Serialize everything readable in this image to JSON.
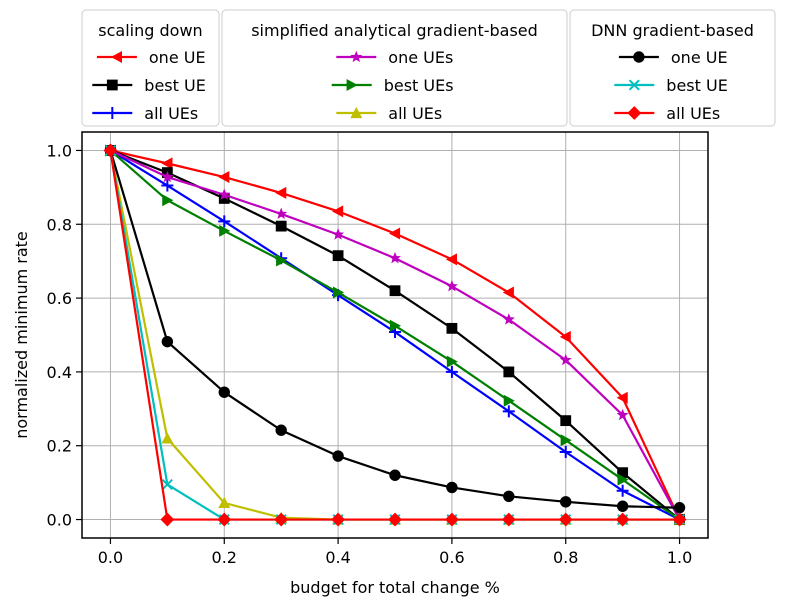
{
  "chart_data": {
    "type": "line",
    "title": "",
    "xlabel": "budget for total change %",
    "ylabel": "normalized minimum rate",
    "xlim": [
      -0.05,
      1.05
    ],
    "ylim": [
      -0.05,
      1.05
    ],
    "grid": true,
    "x": [
      0.0,
      0.1,
      0.2,
      0.3,
      0.4,
      0.5,
      0.6,
      0.7,
      0.8,
      0.9,
      1.0
    ],
    "xticks": [
      0.0,
      0.2,
      0.4,
      0.6,
      0.8,
      1.0
    ],
    "xtick_labels": [
      "0.0",
      "0.2",
      "0.4",
      "0.6",
      "0.8",
      "1.0"
    ],
    "yticks": [
      0.0,
      0.2,
      0.4,
      0.6,
      0.8,
      1.0
    ],
    "ytick_labels": [
      "0.0",
      "0.2",
      "0.4",
      "0.6",
      "0.8",
      "1.0"
    ],
    "legend_groups": [
      {
        "title": "scaling down",
        "entries": [
          0,
          1,
          2
        ]
      },
      {
        "title": "simplified analytical gradient-based",
        "entries": [
          3,
          4,
          5
        ]
      },
      {
        "title": "DNN gradient-based",
        "entries": [
          6,
          7,
          8
        ]
      }
    ],
    "series": [
      {
        "name": "one UE",
        "group": "scaling down",
        "color": "#ff0000",
        "marker": "triangle-left",
        "values": [
          1.0,
          0.965,
          0.928,
          0.885,
          0.835,
          0.775,
          0.705,
          0.615,
          0.495,
          0.33,
          0.0
        ]
      },
      {
        "name": "best UE",
        "group": "scaling down",
        "color": "#000000",
        "marker": "square",
        "values": [
          1.0,
          0.94,
          0.87,
          0.795,
          0.715,
          0.62,
          0.518,
          0.4,
          0.268,
          0.127,
          0.0
        ]
      },
      {
        "name": "all UEs",
        "group": "scaling down",
        "color": "#0000ff",
        "marker": "plus",
        "values": [
          1.0,
          0.905,
          0.808,
          0.708,
          0.608,
          0.508,
          0.4,
          0.293,
          0.183,
          0.078,
          0.0
        ]
      },
      {
        "name": "one UEs",
        "group": "simplified analytical gradient-based",
        "color": "#bf00bf",
        "marker": "star",
        "values": [
          1.0,
          0.928,
          0.88,
          0.828,
          0.772,
          0.708,
          0.632,
          0.542,
          0.432,
          0.283,
          0.0
        ]
      },
      {
        "name": "best UEs",
        "group": "simplified analytical gradient-based",
        "color": "#008000",
        "marker": "triangle-right",
        "values": [
          1.0,
          0.865,
          0.782,
          0.702,
          0.615,
          0.525,
          0.428,
          0.322,
          0.215,
          0.108,
          0.0
        ]
      },
      {
        "name": "all UEs",
        "group": "simplified analytical gradient-based",
        "color": "#bfbf00",
        "marker": "triangle-up",
        "values": [
          1.0,
          0.22,
          0.045,
          0.005,
          0.0,
          0.0,
          0.0,
          0.0,
          0.0,
          0.0,
          0.0
        ]
      },
      {
        "name": "one UE",
        "group": "DNN gradient-based",
        "color": "#000000",
        "marker": "circle",
        "values": [
          1.0,
          0.482,
          0.345,
          0.242,
          0.172,
          0.12,
          0.087,
          0.063,
          0.048,
          0.036,
          0.032
        ]
      },
      {
        "name": "best UE",
        "group": "DNN gradient-based",
        "color": "#00bfbf",
        "marker": "x",
        "values": [
          1.0,
          0.095,
          0.0,
          0.0,
          0.0,
          0.0,
          0.0,
          0.0,
          0.0,
          0.0,
          0.0
        ]
      },
      {
        "name": "all UEs",
        "group": "DNN gradient-based",
        "color": "#ff0000",
        "marker": "diamond",
        "values": [
          1.0,
          0.0,
          0.0,
          0.0,
          0.0,
          0.0,
          0.0,
          0.0,
          0.0,
          0.0,
          0.0
        ]
      }
    ]
  }
}
